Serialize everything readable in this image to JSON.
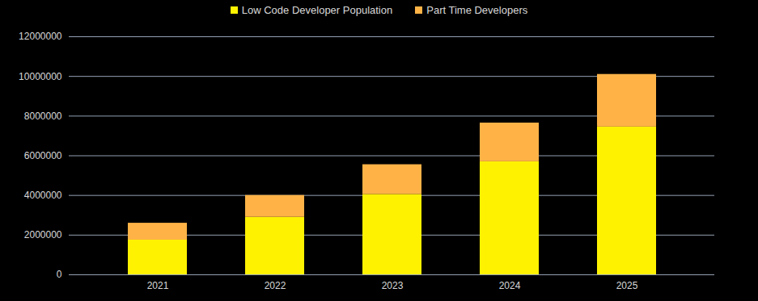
{
  "chart_data": {
    "type": "bar",
    "stacked": true,
    "legend": "top",
    "grid": true,
    "categories": [
      "2021",
      "2022",
      "2023",
      "2024",
      "2025"
    ],
    "series": [
      {
        "name": "Low Code Developer Population",
        "color": "#FFF200",
        "values": [
          1750000,
          2900000,
          4050000,
          5700000,
          7450000
        ]
      },
      {
        "name": "Part Time Developers",
        "color": "#FFB347",
        "values": [
          850000,
          1100000,
          1500000,
          1950000,
          2650000
        ]
      }
    ],
    "ylim": [
      0,
      12000000
    ],
    "yticks": [
      0,
      2000000,
      4000000,
      6000000,
      8000000,
      10000000,
      12000000
    ]
  }
}
